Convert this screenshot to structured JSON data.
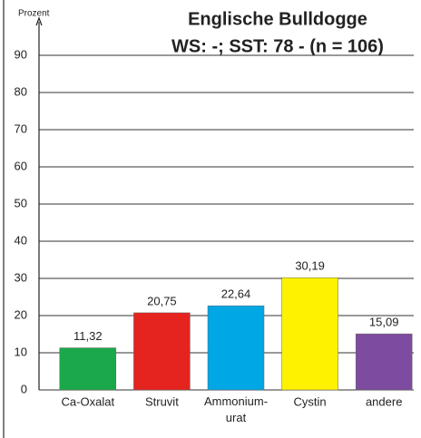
{
  "chart_data": {
    "type": "bar",
    "title": "Englische Bulldogge",
    "subtitle": "WS: -; SST: 78 - (n = 106)",
    "y_label": "Prozent",
    "categories": [
      "Ca-Oxalat",
      "Struvit",
      "Ammonium-\nurat",
      "Cystin",
      "andere"
    ],
    "values": [
      11.32,
      20.75,
      22.64,
      30.19,
      15.09
    ],
    "value_labels": [
      "11,32",
      "20,75",
      "22,64",
      "30,19",
      "15,09"
    ],
    "colors": [
      "#1ba84a",
      "#e5231f",
      "#00a7e5",
      "#fff200",
      "#7d4b9f"
    ],
    "ylim": [
      0,
      100
    ],
    "yticks": [
      0,
      10,
      20,
      30,
      40,
      50,
      60,
      70,
      80,
      90
    ],
    "grid": true
  }
}
